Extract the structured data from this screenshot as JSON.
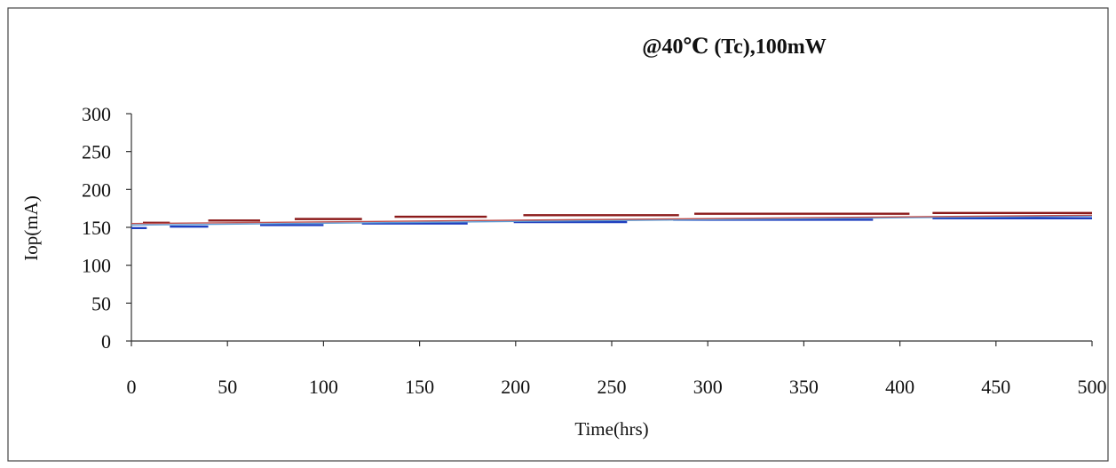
{
  "chart_data": {
    "type": "line",
    "title": "@40℃ (Tc),100mW",
    "xlabel": "Time(hrs)",
    "ylabel": "Iop(mA)",
    "xlim": [
      0,
      500
    ],
    "ylim": [
      0,
      300
    ],
    "x_ticks": [
      "0",
      "50",
      "100",
      "150",
      "200",
      "250",
      "300",
      "350",
      "400",
      "450",
      "500"
    ],
    "y_ticks": [
      "0",
      "50",
      "100",
      "150",
      "200",
      "250",
      "300"
    ],
    "grid": false,
    "legend": "none",
    "series": [
      {
        "color": "#8b1a1a",
        "segments": [
          {
            "x": [
              6,
              20
            ],
            "y": 156
          },
          {
            "x": [
              40,
              67
            ],
            "y": 159
          },
          {
            "x": [
              85,
              120
            ],
            "y": 161
          },
          {
            "x": [
              137,
              185
            ],
            "y": 164
          },
          {
            "x": [
              204,
              285
            ],
            "y": 166
          },
          {
            "x": [
              293,
              405
            ],
            "y": 168
          },
          {
            "x": [
              417,
              500
            ],
            "y": 169
          }
        ]
      },
      {
        "color": "#1f3fbf",
        "segments": [
          {
            "x": [
              0,
              8
            ],
            "y": 149
          },
          {
            "x": [
              20,
              40
            ],
            "y": 151
          },
          {
            "x": [
              67,
              100
            ],
            "y": 153
          },
          {
            "x": [
              120,
              175
            ],
            "y": 155
          },
          {
            "x": [
              199,
              258
            ],
            "y": 157
          },
          {
            "x": [
              282,
              386
            ],
            "y": 160
          },
          {
            "x": [
              417,
              500
            ],
            "y": 162
          }
        ]
      },
      {
        "color": "#5b9bd5",
        "segments": [
          {
            "x": [
              0,
              500
            ],
            "y_start": 153,
            "y_end": 165
          }
        ]
      },
      {
        "color": "#c0504d",
        "segments": [
          {
            "x": [
              0,
              500
            ],
            "y_start": 155,
            "y_end": 166
          }
        ]
      }
    ]
  }
}
